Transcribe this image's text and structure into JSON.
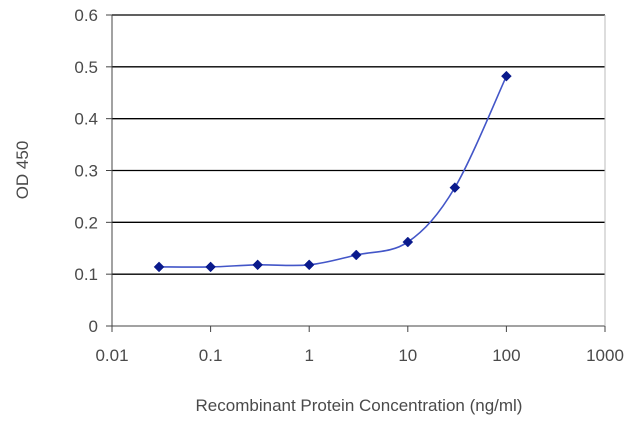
{
  "chart_data": {
    "type": "line",
    "xscale": "log",
    "xlim": [
      0.01,
      1000
    ],
    "ylim": [
      0,
      0.6
    ],
    "grid": "horizontal",
    "xlabel": "Recombinant Protein Concentration (ng/ml)",
    "ylabel": "OD 450",
    "x_ticks": [
      "0.01",
      "0.1",
      "1",
      "10",
      "100",
      "1000"
    ],
    "y_ticks": [
      "0",
      "0.1",
      "0.2",
      "0.3",
      "0.4",
      "0.5",
      "0.6"
    ],
    "x": [
      0.03,
      0.1,
      0.3,
      1,
      3,
      10,
      30,
      100
    ],
    "values": [
      0.114,
      0.114,
      0.118,
      0.118,
      0.137,
      0.162,
      0.267,
      0.482
    ],
    "series_color": "#4356c8",
    "marker_color": "#0a1a8c",
    "grid_color": "#000000",
    "axis_color": "#444444"
  }
}
